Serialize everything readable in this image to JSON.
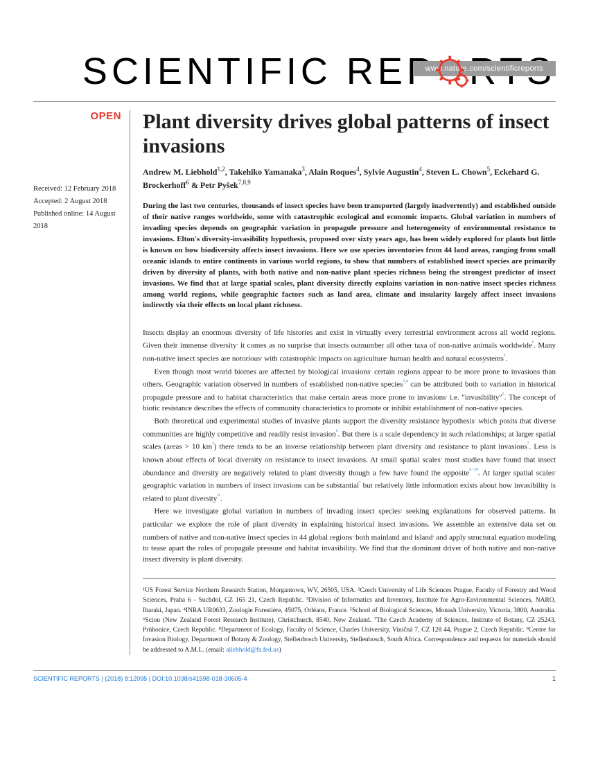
{
  "header": {
    "url": "www.nature.com/scientificreports",
    "journal_pre": "SCIENTIFIC REP",
    "journal_post": "RTS",
    "open_badge": "OPEN"
  },
  "dates": {
    "received": "Received: 12 February 2018",
    "accepted": "Accepted: 2 August 2018",
    "published": "Published online: 14 August 2018"
  },
  "article": {
    "title": "Plant diversity drives global patterns of insect invasions",
    "authors_html": "Andrew M. Liebhold<sup>1,2</sup>, Takehiko Yamanaka<sup>3</sup>, Alain Roques<sup>4</sup>, Sylvie Augustin<sup>4</sup>, Steven L. Chown<sup>5</sup>, Eckehard G. Brockerhoff<sup>6</sup> & Petr Pyšek<sup>7,8,9</sup>",
    "abstract": "During the last two centuries, thousands of insect species have been transported (largely inadvertently) and established outside of their native ranges worldwide, some with catastrophic ecological and economic impacts. Global variation in numbers of invading species depends on geographic variation in propagule pressure and heterogeneity of environmental resistance to invasions. Elton's diversity-invasibility hypothesis, proposed over sixty years ago, has been widely explored for plants but little is known on how biodiversity affects insect invasions. Here we use species inventories from 44 land areas, ranging from small oceanic islands to entire continents in various world regions, to show that numbers of established insect species are primarily driven by diversity of plants, with both native and non-native plant species richness being the strongest predictor of insect invasions. We find that at large spatial scales, plant diversity directly explains variation in non-native insect species richness among world regions, while geographic factors such as land area, climate and insularity largely affect insect invasions indirectly via their effects on local plant richness."
  },
  "body": {
    "p1": "Insects display an enormous diversity of life histories and exist in virtually every terrestrial environment across all world regions. Given their immense diversity, it comes as no surprise that insects outnumber all other taxa of non-native animals worldwide¹. Many non-native insect species are notorious, with catastrophic impacts on agriculture, human health and natural ecosystems².",
    "p2": "Even though most world biomes are affected by biological invasions, certain regions appear to be more prone to invasions than others. Geographic variation observed in numbers of established non-native species³,⁴ can be attributed both to variation in historical propagule pressure and to habitat characteristics that make certain areas more prone to invasions, i.e. \"invasibility\"⁵. The concept of biotic resistance describes the effects of community characteristics to promote or inhibit establishment of non-native species.",
    "p3": "Both theoretical and experimental studies of invasive plants support the diversity resistance hypothesis, which posits that diverse communities are highly competitive and readily resist invasion⁶. But there is a scale dependency in such relationships; at larger spatial scales (areas > 10 km²) there tends to be an inverse relationship between plant diversity and resistance to plant invasions⁷. Less is known about effects of local diversity on resistance to insect invasions. At small spatial scales, most studies have found that insect abundance and diversity are negatively related to plant diversity though a few have found the opposite⁸⁻¹⁰. At larger spatial scales, geographic variation in numbers of insect invasions can be substantial¹ but relatively little information exists about how invasibility is related to plant diversity¹¹.",
    "p4": "Here we investigate global variation in numbers of invading insect species, seeking explanations for observed patterns. In particular, we explore the role of plant diversity in explaining historical insect invasions. We assemble an extensive data set on numbers of native and non-native insect species in 44 global regions, both mainland and island, and apply structural equation modeling to tease apart the roles of propagule pressure and habitat invasibility. We find that the dominant driver of both native and non-native insect diversity is plant diversity."
  },
  "affiliations": "¹US Forest Service Northern Research Station, Morgantown, WV, 26505, USA. ²Czech University of Life Sciences Prague, Faculty of Forestry and Wood Sciences, Praha 6 - Suchdol, CZ 165 21, Czech Republic. ³Division of Informatics and Inventory, Institute for Agro-Environmental Sciences, NARO, Ibaraki, Japan. ⁴INRA UR0633, Zoologie Forestière, 45075, Orléans, France. ⁵School of Biological Sciences, Monash University, Victoria, 3800, Australia. ⁶Scion (New Zealand Forest Research Institute), Christchurch, 8540, New Zealand. ⁷The Czech Academy of Sciences, Institute of Botany, CZ 25243, Průhonice, Czech Republic. ⁸Department of Ecology, Faculty of Science, Charles University, Viničná 7, CZ 128 44, Prague 2, Czech Republic. ⁹Centre for Invasion Biology, Department of Botany & Zoology, Stellenbosch University, Stellenbosch, South Africa. Correspondence and requests for materials should be addressed to A.M.L. (email: ",
  "email": "aliebhold@fs.fed.us",
  "footer": {
    "citation": "SCIENTIFIC REPORTS |  (2018) 8:12095  | DOI:10.1038/s41598-018-30605-4",
    "page": "1"
  },
  "colors": {
    "accent_red": "#e63a2e",
    "link_blue": "#1976d2",
    "url_bar_bg": "#9b9b9b"
  }
}
